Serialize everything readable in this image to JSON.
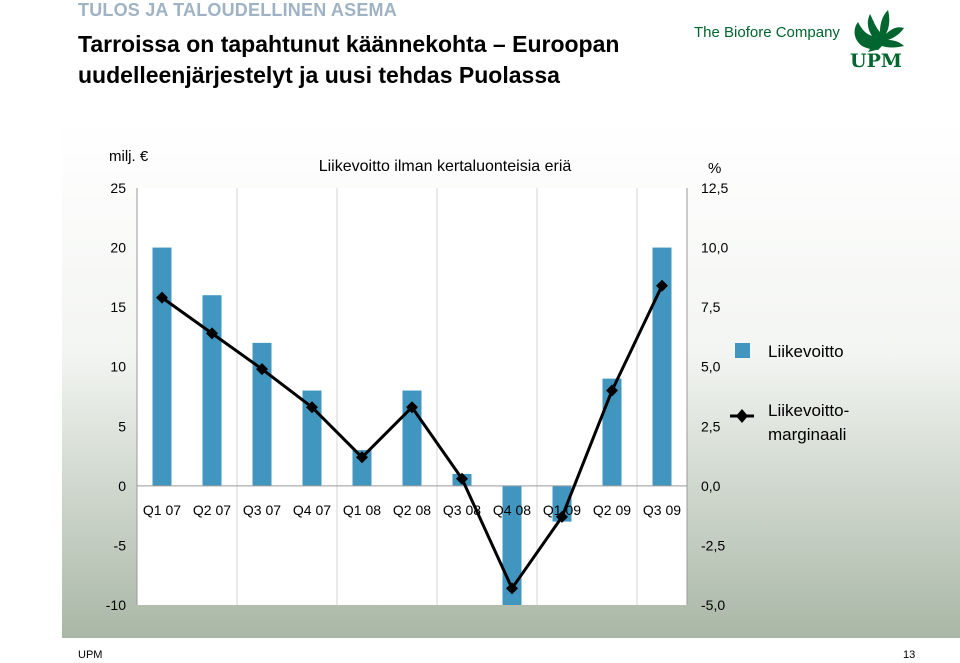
{
  "header": {
    "kicker": "TULOS JA TALOUDELLINEN ASEMA",
    "title_line1": "Tarroissa on tapahtunut käännekohta – Euroopan",
    "title_line2": "uudelleenjärjestelyt ja uusi tehdas Puolassa",
    "tagline": "The Biofore Company",
    "logo_text": "UPM"
  },
  "colors": {
    "bar": "#4196c0",
    "line": "#000000",
    "backdrop_top": "#ffffff",
    "backdrop_bottom": "#a9b7a6",
    "brand": "#00652e"
  },
  "chart_data": {
    "type": "bar",
    "title": "Liikevoitto ilman kertaluonteisia eriä",
    "ylabel_left": "milj. €",
    "ylabel_right": "%",
    "categories": [
      "Q1 07",
      "Q2 07",
      "Q3 07",
      "Q4 07",
      "Q1 08",
      "Q2 08",
      "Q3 08",
      "Q4 08",
      "Q1 09",
      "Q2 09",
      "Q3 09"
    ],
    "series": [
      {
        "name": "Liikevoitto",
        "type": "bar",
        "axis": "left",
        "values": [
          20,
          16,
          12,
          8,
          3,
          8,
          1,
          -10,
          -3,
          9,
          20
        ]
      },
      {
        "name": "Liikevoittomarginaali",
        "type": "line",
        "axis": "right",
        "values": [
          7.9,
          6.4,
          4.9,
          3.3,
          1.2,
          3.3,
          0.3,
          -4.3,
          -1.3,
          4.0,
          8.4
        ]
      }
    ],
    "left_ylim": [
      -10,
      25
    ],
    "left_ticks": [
      "25",
      "20",
      "15",
      "10",
      "5",
      "0",
      "-5",
      "-10"
    ],
    "right_ylim": [
      -5,
      12.5
    ],
    "right_ticks": [
      "12,5",
      "10,0",
      "7,5",
      "5,0",
      "2,5",
      "0,0",
      "-2,5",
      "-5,0"
    ],
    "legend": [
      "Liikevoitto",
      "Liikevoitto-",
      "marginaali"
    ],
    "legend_position": "right",
    "grid": false
  },
  "footer": {
    "left": "UPM",
    "page": "13"
  }
}
